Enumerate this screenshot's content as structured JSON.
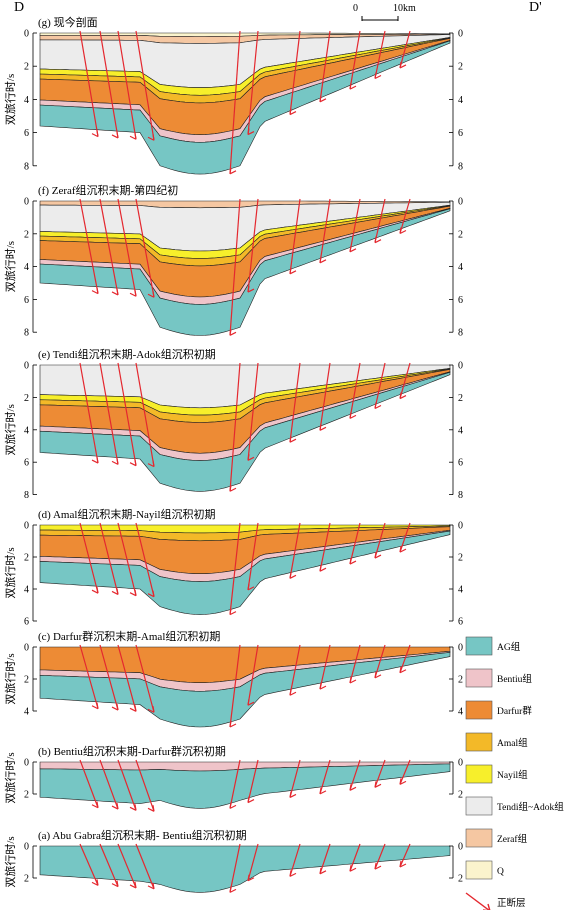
{
  "header": {
    "left_label": "D",
    "right_label": "D'",
    "scale_zero": "0",
    "scale_len": "10km"
  },
  "y_axis_label": "双旅行时/s",
  "colors": {
    "AG": "#76c6c4",
    "Bentiu": "#efc4c9",
    "Darfur": "#ed8b35",
    "Amal": "#f3b928",
    "Nayil": "#f7ef2b",
    "Tendi_Adok": "#ececec",
    "Zeraf": "#f5c7a2",
    "Q": "#fbf4cd",
    "fault": "#e4282f",
    "outline": "#222222"
  },
  "panels": [
    {
      "id": "g",
      "title": "(g) 现今剖面",
      "ticks": [
        "0",
        "2",
        "4",
        "6",
        "8"
      ]
    },
    {
      "id": "f",
      "title": "(f) Zeraf组沉积末期-第四纪初",
      "ticks": [
        "0",
        "2",
        "4",
        "6",
        "8"
      ]
    },
    {
      "id": "e",
      "title": "(e) Tendi组沉积末期-Adok组沉积初期",
      "ticks": [
        "0",
        "2",
        "4",
        "6",
        "8"
      ]
    },
    {
      "id": "d",
      "title": "(d) Amal组沉积末期-Nayil组沉积初期",
      "ticks": [
        "0",
        "2",
        "4",
        "6"
      ]
    },
    {
      "id": "c",
      "title": "(c) Darfur群沉积末期-Amal组沉积初期",
      "ticks": [
        "0",
        "2",
        "4"
      ]
    },
    {
      "id": "b",
      "title": "(b) Bentiu组沉积末期-Darfur群沉积初期",
      "ticks": [
        "0",
        "2"
      ]
    },
    {
      "id": "a",
      "title": "(a) Abu Gabra组沉积末期- Bentiu组沉积初期",
      "ticks": [
        "0",
        "2"
      ]
    }
  ],
  "legend": [
    {
      "key": "AG",
      "label": "AG组"
    },
    {
      "key": "Bentiu",
      "label": "Bentiu组"
    },
    {
      "key": "Darfur",
      "label": "Darfur群"
    },
    {
      "key": "Amal",
      "label": "Amal组"
    },
    {
      "key": "Nayil",
      "label": "Nayil组"
    },
    {
      "key": "Tendi_Adok",
      "label": "Tendi组~Adok组"
    },
    {
      "key": "Zeraf",
      "label": "Zeraf组"
    },
    {
      "key": "Q",
      "label": "Q"
    },
    {
      "key": "fault",
      "label": "正断层"
    }
  ]
}
